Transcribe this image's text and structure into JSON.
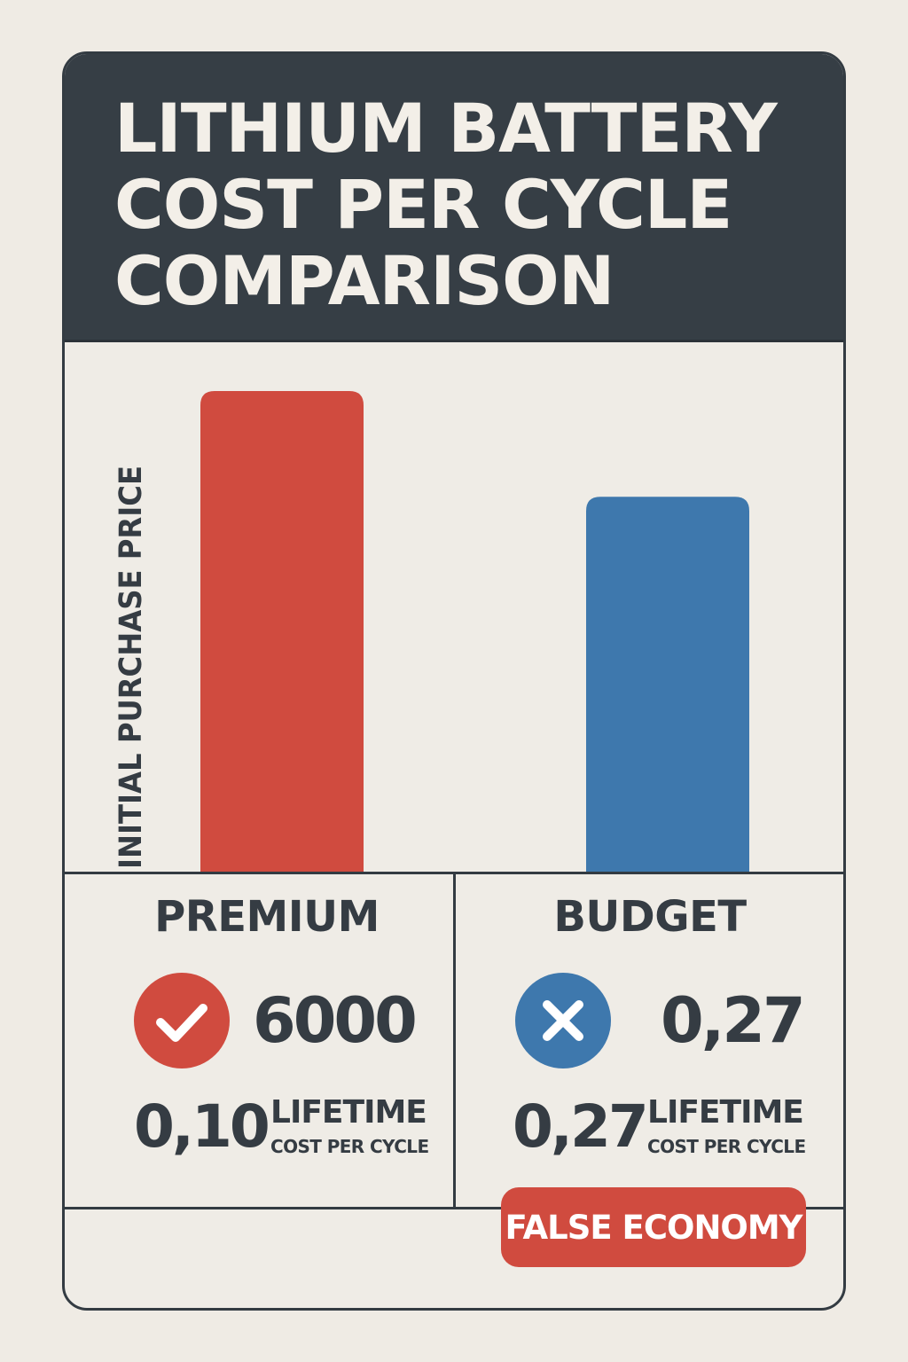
{
  "title": {
    "line1": "LITHIUM BATTERY",
    "line2": "COST PER CYCLE",
    "line3": "COMPARISON"
  },
  "chart_data": {
    "type": "bar",
    "ylabel": "INITIAL PURCHASE PRICE",
    "categories": [
      "PREMIUM",
      "BUDGET"
    ],
    "values": [
      1.0,
      0.78
    ],
    "colors": [
      "#d04b3f",
      "#3e78ad"
    ],
    "grid": false
  },
  "premium": {
    "label": "PREMIUM",
    "status_icon": "check-icon",
    "cycles": "6000",
    "cost": "0,10",
    "lifetime": "LIFETIME",
    "cost_per_cycle": "COST PER CYCLE"
  },
  "budget": {
    "label": "BUDGET",
    "status_icon": "x-icon",
    "cycles": "0,27",
    "cost": "0,27",
    "lifetime": "LIFETIME",
    "cost_per_cycle": "COST PER CYCLE"
  },
  "badge": {
    "label": "FALSE ECONOMY"
  }
}
